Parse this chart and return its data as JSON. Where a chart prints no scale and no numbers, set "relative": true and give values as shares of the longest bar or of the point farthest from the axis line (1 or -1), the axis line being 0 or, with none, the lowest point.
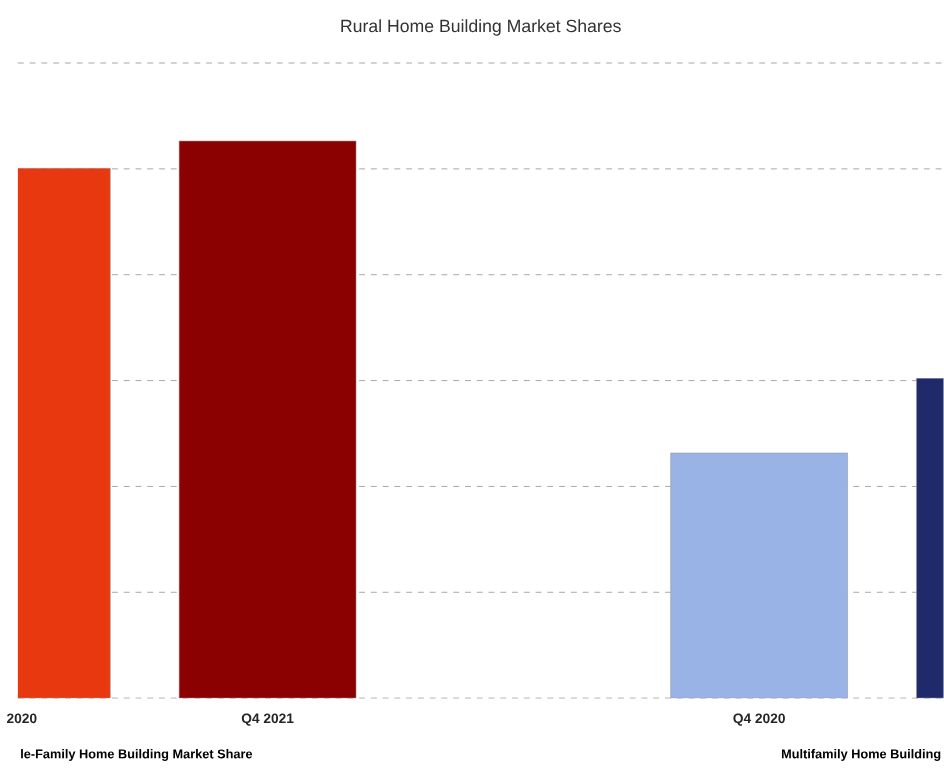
{
  "chart_data": {
    "type": "bar",
    "title": "Rural Home Building Market Shares",
    "relative": true,
    "grid": "y",
    "categories": [
      "2020",
      "Q4 2021",
      null,
      "Q4 2020",
      null
    ],
    "values": [
      0.951,
      1,
      null,
      0.44,
      0.574
    ],
    "colors": [
      "#e8380f",
      "#8b0000",
      "#ffffff",
      "#99b3e6",
      "#1f2a6b"
    ],
    "annotations": [
      "le-Family Home Building Market Share",
      "Multifamily Home Building"
    ]
  }
}
